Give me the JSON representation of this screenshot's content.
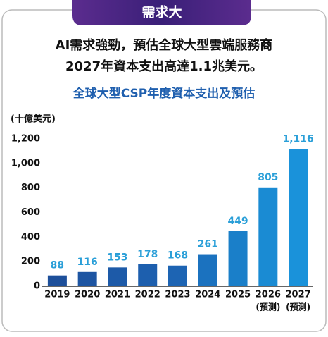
{
  "header": {
    "tag": "需求大"
  },
  "intro": {
    "lines": [
      "AI需求強勁，預估全球大型雲端服務商",
      "2027年資本支出高達1.1兆美元。"
    ]
  },
  "chart_data": {
    "type": "bar",
    "title": "全球大型CSP年度資本支出及預估",
    "y_label": "(十億美元)",
    "categories": [
      "2019",
      "2020",
      "2021",
      "2022",
      "2023",
      "2024",
      "2025",
      "2026",
      "2027"
    ],
    "sublabels": [
      null,
      null,
      null,
      null,
      null,
      null,
      null,
      "(預測)",
      "(預測)"
    ],
    "values": [
      88,
      116,
      153,
      178,
      168,
      261,
      449,
      805,
      1116
    ],
    "value_labels": [
      "88",
      "116",
      "153",
      "178",
      "168",
      "261",
      "449",
      "805",
      "1,116"
    ],
    "colors": [
      "#1d4f9a",
      "#1d55a2",
      "#1d5aa8",
      "#1d5fae",
      "#1d64b3",
      "#1b72bf",
      "#1a7fc9",
      "#1a8bd3",
      "#1a92da"
    ],
    "label_color": "#2a9fd8",
    "ylim": [
      0,
      1200
    ],
    "yticks": [
      0,
      200,
      400,
      600,
      800,
      {
        "value": 1000,
        "label": "1,000"
      },
      {
        "value": 1200,
        "label": "1,200"
      }
    ]
  }
}
